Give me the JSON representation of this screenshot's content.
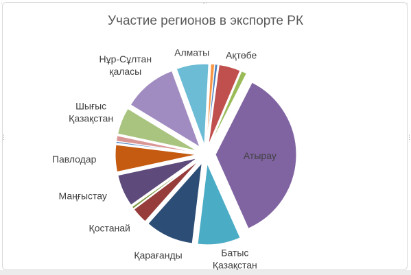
{
  "chart_data": {
    "type": "pie",
    "title": "Участие регионов в экспорте РК",
    "legend": "none",
    "slices": [
      {
        "label": "",
        "value": 0.7,
        "color": "#F79646"
      },
      {
        "label": "",
        "value": 0.5,
        "color": "#4F81BD"
      },
      {
        "label": "Ақтөбе",
        "value": 4.0,
        "color": "#C0504D"
      },
      {
        "label": "",
        "value": 1.0,
        "color": "#9BBB59"
      },
      {
        "label": "Атырау",
        "value": 33.5,
        "color": "#8064A2"
      },
      {
        "label": "Батыс Қазақстан",
        "value": 8.0,
        "color": "#4BACC6"
      },
      {
        "label": "Қарағанды",
        "value": 9.0,
        "color": "#2C4D75"
      },
      {
        "label": "Қостанай",
        "value": 3.0,
        "color": "#963C3A"
      },
      {
        "label": "",
        "value": 0.4,
        "color": "#77933C"
      },
      {
        "label": "Маңғыстау",
        "value": 6.0,
        "color": "#5E4B7C"
      },
      {
        "label": "Павлодар",
        "value": 5.0,
        "color": "#C55A11"
      },
      {
        "label": "",
        "value": 0.3,
        "color": "#4A7EBB"
      },
      {
        "label": "",
        "value": 1.0,
        "color": "#D99694"
      },
      {
        "label": "Шығыс Қазақстан",
        "value": 5.0,
        "color": "#A9C47F"
      },
      {
        "label": "Нұр-Сұлтан қаласы",
        "value": 10.0,
        "color": "#A08CC0"
      },
      {
        "label": "Алматы",
        "value": 6.0,
        "color": "#6CBCD6"
      }
    ]
  }
}
